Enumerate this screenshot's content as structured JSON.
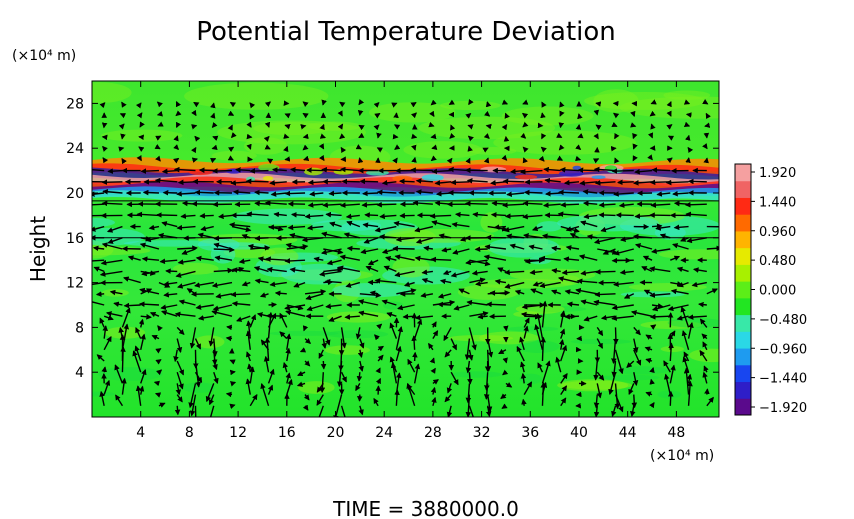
{
  "chart_data": {
    "type": "heatmap",
    "title": "Potential Temperature Deviation",
    "ylabel": "Height",
    "y_unit": "(×10⁴ m)",
    "x_unit": "(×10⁴ m)",
    "xlim": [
      0,
      51.5
    ],
    "ylim": [
      0,
      30
    ],
    "x_ticks": [
      "4",
      "8",
      "12",
      "16",
      "20",
      "24",
      "28",
      "32",
      "36",
      "40",
      "44",
      "48"
    ],
    "y_ticks": [
      "4",
      "8",
      "12",
      "16",
      "20",
      "24",
      "28"
    ],
    "colorbar": {
      "labels": [
        "1.920",
        "1.440",
        "0.960",
        "0.480",
        "0.000",
        "−0.480",
        "−0.960",
        "−1.440",
        "−1.920"
      ],
      "range": [
        -1.92,
        1.92
      ],
      "colors": [
        "#5a0a8c",
        "#2e1ec8",
        "#1846f0",
        "#1e9bf0",
        "#2ad8e6",
        "#38e8a8",
        "#22e622",
        "#5cee18",
        "#a8f000",
        "#e6ea00",
        "#ffb400",
        "#ff6a00",
        "#ff2a14",
        "#f06464",
        "#f5a0a0"
      ]
    },
    "bands": [
      {
        "y_from": 0,
        "y_to": 9,
        "value": 0.35,
        "label": "lower layer, mostly green"
      },
      {
        "y_from": 9,
        "y_to": 18,
        "value": 0.1,
        "label": "middle layer with cyan patches"
      },
      {
        "y_from": 19,
        "y_to": 22,
        "value": 1.92,
        "label": "strong alternating band"
      },
      {
        "y_from": 22,
        "y_to": 30,
        "value": 0.45,
        "label": "upper layer"
      }
    ],
    "time_label": "TIME = 3880000.0",
    "legend": "right"
  }
}
